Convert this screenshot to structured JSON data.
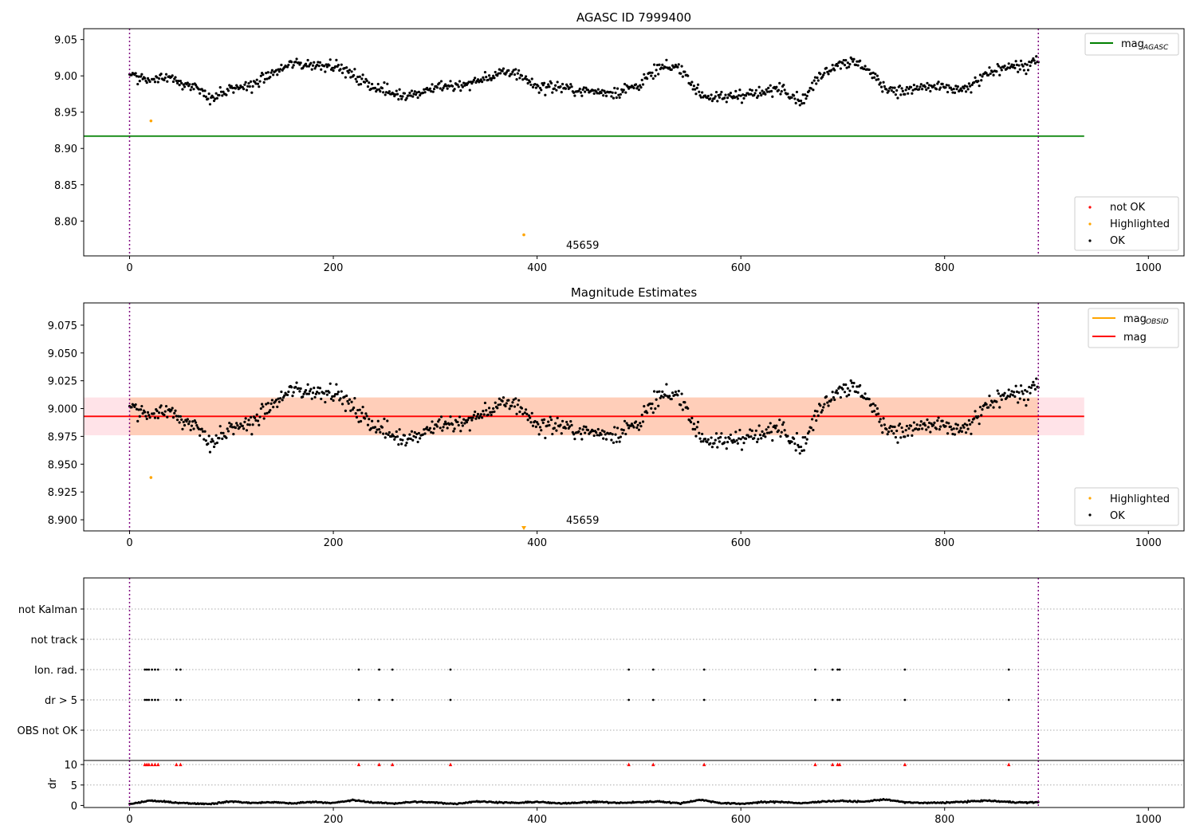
{
  "figure": {
    "title": "AGASC ID 7999400",
    "colors": {
      "ok": "#000000",
      "highlighted": "#ffa500",
      "not_ok": "#ff0000",
      "mag_agasc": "#008000",
      "mag": "#ff0000",
      "mag_obsid": "#ffa500",
      "band_outer": "#ffc0cb",
      "band_inner": "#ffb380",
      "obs_marker": "#800080"
    }
  },
  "chart_data": [
    {
      "type": "scatter",
      "title": "AGASC ID 7999400",
      "xlim": [
        -45,
        1035
      ],
      "ylim": [
        8.752,
        9.065
      ],
      "xticks": [
        "0",
        "200",
        "400",
        "600",
        "800",
        "1000"
      ],
      "yticks": [
        "8.80",
        "8.85",
        "8.90",
        "8.95",
        "9.00",
        "9.05"
      ],
      "grid": false,
      "mag_agasc": 8.917,
      "mag_agasc_xmax": 937,
      "obs_boundaries": [
        0,
        892
      ],
      "highlighted_points": [
        [
          21,
          8.938
        ],
        [
          387,
          8.781
        ]
      ],
      "annotation": {
        "text": "45659",
        "x": 387,
        "y": 8.76
      },
      "series": [
        {
          "name": "OK",
          "color": "#000000"
        }
      ],
      "legend_upper": {
        "position": "upper-right",
        "label_main": "mag",
        "label_sub": "AGASC"
      },
      "legend_lower": {
        "position": "lower-right",
        "labels": [
          "not OK",
          "Highlighted",
          "OK"
        ]
      }
    },
    {
      "type": "scatter",
      "title": "Magnitude Estimates",
      "xlim": [
        -45,
        1035
      ],
      "ylim": [
        8.89,
        9.095
      ],
      "xticks": [
        "0",
        "200",
        "400",
        "600",
        "800",
        "1000"
      ],
      "yticks": [
        "8.900",
        "8.925",
        "8.950",
        "8.975",
        "9.000",
        "9.025",
        "9.050",
        "9.075"
      ],
      "grid": false,
      "mag": 8.993,
      "mag_err": [
        8.976,
        9.01
      ],
      "band_xmax": 937,
      "obs_boundaries": [
        0,
        892
      ],
      "highlighted_points": [
        [
          21,
          8.938
        ],
        [
          387,
          8.892
        ]
      ],
      "annotation": {
        "text": "45659",
        "x": 387,
        "y": 8.89
      },
      "legend_upper": {
        "position": "upper-right",
        "label_obsid_main": "mag",
        "label_obsid_sub": "OBSID",
        "label_mag": "mag"
      },
      "legend_lower": {
        "position": "lower-right",
        "labels": [
          "Highlighted",
          "OK"
        ]
      }
    },
    {
      "type": "scatter",
      "title": "",
      "xlim": [
        -45,
        1035
      ],
      "categories": [
        "not Kalman",
        "not track",
        "Ion. rad.",
        "dr > 5",
        "OBS not OK"
      ],
      "flag_x": {
        "Ion. rad.": [
          15,
          17,
          19,
          22,
          25,
          28,
          46,
          50,
          225,
          245,
          258,
          315,
          490,
          514,
          564,
          673,
          690,
          695,
          697,
          761,
          863
        ],
        "dr > 5": [
          15,
          17,
          19,
          22,
          25,
          28,
          46,
          50,
          225,
          245,
          258,
          315,
          490,
          514,
          564,
          673,
          690,
          695,
          697,
          761,
          863
        ],
        "not Kalman": [],
        "not track": [],
        "OBS not OK": []
      },
      "obs_boundaries": [
        0,
        892
      ]
    },
    {
      "type": "scatter",
      "title": "",
      "xlim": [
        -45,
        1035
      ],
      "ylim": [
        -0.5,
        11
      ],
      "ylabel": "dr",
      "yticks": [
        "0",
        "5",
        "10"
      ],
      "xticks": [
        "0",
        "200",
        "400",
        "600",
        "800",
        "1000"
      ],
      "dr_cap": 10,
      "capped_x": [
        15,
        17,
        19,
        22,
        25,
        28,
        46,
        50,
        225,
        245,
        258,
        315,
        490,
        514,
        564,
        673,
        690,
        695,
        697,
        761,
        863
      ],
      "obs_boundaries": [
        0,
        892
      ]
    }
  ],
  "curve_model": {
    "n_points": 893,
    "ok_anchors_x": [
      0,
      20,
      40,
      60,
      80,
      100,
      120,
      140,
      160,
      180,
      200,
      220,
      240,
      260,
      280,
      300,
      320,
      340,
      360,
      380,
      400,
      420,
      440,
      460,
      480,
      500,
      520,
      540,
      560,
      580,
      600,
      620,
      640,
      660,
      680,
      700,
      720,
      740,
      760,
      780,
      800,
      820,
      840,
      860,
      880,
      892
    ],
    "ok_anchors_y": [
      9.003,
      8.993,
      9.0,
      8.985,
      8.97,
      8.98,
      8.988,
      9.003,
      9.017,
      9.015,
      9.016,
      9.0,
      8.985,
      8.975,
      8.975,
      8.985,
      8.985,
      8.992,
      9.002,
      9.005,
      8.985,
      8.985,
      8.98,
      8.978,
      8.978,
      8.988,
      9.01,
      9.012,
      8.975,
      8.968,
      8.975,
      8.975,
      8.985,
      8.965,
      9.005,
      9.02,
      9.015,
      8.985,
      8.978,
      8.985,
      8.983,
      8.98,
      9.0,
      9.015,
      9.012,
      9.022
    ],
    "noise": 0.008,
    "dr_anchors_y": [
      0.3,
      1.2,
      0.8,
      0.5,
      0.4,
      1.0,
      0.6,
      0.8,
      0.5,
      0.9,
      0.6,
      1.3,
      0.7,
      0.5,
      0.9,
      0.7,
      0.4,
      1.0,
      0.8,
      0.6,
      0.9,
      0.5,
      0.7,
      0.9,
      0.6,
      0.8,
      1.0,
      0.5,
      1.4,
      0.6,
      0.4,
      0.8,
      0.9,
      0.5,
      1.0,
      1.1,
      0.9,
      1.5,
      0.8,
      0.6,
      0.7,
      0.9,
      1.2,
      0.9,
      0.7,
      0.8
    ]
  }
}
